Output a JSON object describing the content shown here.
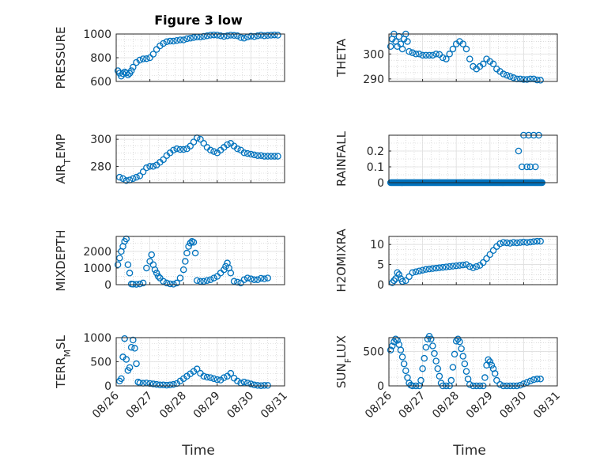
{
  "figure": {
    "title": "Figure 3 low",
    "xlabel": "Time",
    "marker_color": "#0072BD"
  },
  "chart_data": [
    {
      "type": "scatter",
      "ylabel": "PRESSURE",
      "ylim": [
        600,
        1000
      ],
      "yticks": [
        600,
        800,
        1000
      ],
      "minor_dy": 50,
      "xlim": [
        0,
        5
      ],
      "xticks": [
        "08/26",
        "08/27",
        "08/28",
        "08/29",
        "08/30",
        "08/31"
      ],
      "grid": true,
      "series": [
        {
          "x": [
            0.05,
            0.1,
            0.15,
            0.2,
            0.25,
            0.3,
            0.35,
            0.4,
            0.45,
            0.5,
            0.6,
            0.7,
            0.8,
            0.9,
            1.0,
            1.1,
            1.2,
            1.3,
            1.4,
            1.5,
            1.6,
            1.7,
            1.8,
            1.9,
            2.0,
            2.1,
            2.2,
            2.3,
            2.4,
            2.5,
            2.6,
            2.7,
            2.8,
            2.9,
            3.0,
            3.1,
            3.2,
            3.3,
            3.4,
            3.5,
            3.6,
            3.7,
            3.8,
            3.9,
            4.0,
            4.1,
            4.2,
            4.3,
            4.4,
            4.5,
            4.6,
            4.7,
            4.8
          ],
          "y": [
            690,
            670,
            645,
            665,
            680,
            672,
            655,
            668,
            690,
            720,
            760,
            780,
            790,
            792,
            800,
            830,
            870,
            900,
            920,
            935,
            940,
            940,
            945,
            950,
            950,
            960,
            965,
            970,
            975,
            975,
            980,
            985,
            990,
            992,
            990,
            985,
            980,
            985,
            990,
            988,
            985,
            970,
            965,
            975,
            982,
            978,
            985,
            990,
            985,
            988,
            990,
            992,
            990
          ]
        }
      ]
    },
    {
      "type": "scatter",
      "ylabel": "THETA",
      "ylim": [
        289,
        308
      ],
      "yticks": [
        290,
        300
      ],
      "minor_dy": 2.5,
      "xlim": [
        0,
        5
      ],
      "xticks": [
        "08/26",
        "08/27",
        "08/28",
        "08/29",
        "08/30",
        "08/31"
      ],
      "grid": true,
      "series": [
        {
          "x": [
            0.05,
            0.1,
            0.15,
            0.2,
            0.25,
            0.3,
            0.35,
            0.4,
            0.45,
            0.5,
            0.55,
            0.6,
            0.7,
            0.8,
            0.9,
            1.0,
            1.1,
            1.2,
            1.3,
            1.4,
            1.5,
            1.6,
            1.7,
            1.8,
            1.9,
            2.0,
            2.1,
            2.2,
            2.3,
            2.4,
            2.5,
            2.6,
            2.7,
            2.8,
            2.9,
            3.0,
            3.1,
            3.2,
            3.3,
            3.4,
            3.5,
            3.6,
            3.7,
            3.8,
            3.9,
            4.0,
            4.1,
            4.2,
            4.3,
            4.4,
            4.5
          ],
          "y": [
            303,
            306,
            308,
            305,
            303,
            307,
            304,
            302,
            306,
            308,
            305,
            301,
            300.5,
            300,
            300,
            299.5,
            299.5,
            299.5,
            299.5,
            300,
            299.8,
            298.5,
            298,
            300,
            302,
            304,
            305,
            304,
            302,
            298,
            295,
            294,
            295,
            296,
            298,
            297,
            296,
            294,
            293,
            292,
            291.5,
            291,
            290.5,
            290,
            290,
            289.8,
            289.8,
            290,
            290,
            289.6,
            289.5
          ]
        }
      ]
    },
    {
      "type": "scatter",
      "ylabel": "AIR_TEMP",
      "ylim": [
        268,
        303
      ],
      "yticks": [
        280,
        300
      ],
      "minor_dy": 5,
      "xlim": [
        0,
        5
      ],
      "xticks": [
        "08/26",
        "08/27",
        "08/28",
        "08/29",
        "08/30",
        "08/31"
      ],
      "grid": true,
      "series": [
        {
          "x": [
            0.1,
            0.2,
            0.3,
            0.4,
            0.5,
            0.6,
            0.7,
            0.8,
            0.9,
            1.0,
            1.1,
            1.2,
            1.3,
            1.4,
            1.5,
            1.6,
            1.7,
            1.8,
            1.9,
            2.0,
            2.1,
            2.2,
            2.3,
            2.4,
            2.5,
            2.6,
            2.7,
            2.8,
            2.9,
            3.0,
            3.1,
            3.2,
            3.3,
            3.4,
            3.5,
            3.6,
            3.7,
            3.8,
            3.9,
            4.0,
            4.1,
            4.2,
            4.3,
            4.4,
            4.5,
            4.6,
            4.7,
            4.8
          ],
          "y": [
            272,
            271,
            269.5,
            270,
            271,
            272,
            273,
            276,
            279,
            280,
            280,
            281,
            283,
            285,
            288,
            290,
            292,
            293,
            292.5,
            292.5,
            293,
            295,
            298,
            301,
            300,
            297,
            294,
            292,
            291,
            290,
            292,
            294,
            296,
            297,
            295,
            293,
            292,
            290,
            289.5,
            289,
            288.5,
            288,
            288,
            287.5,
            287.5,
            287.5,
            287.5,
            287.5
          ]
        }
      ]
    },
    {
      "type": "scatter",
      "ylabel": "RAINFALL",
      "ylim": [
        0,
        0.3
      ],
      "yticks": [
        0,
        0.1,
        0.2
      ],
      "minor_dy": 0.05,
      "xlim": [
        0,
        5
      ],
      "xticks": [
        "08/26",
        "08/27",
        "08/28",
        "08/29",
        "08/30",
        "08/31"
      ],
      "grid": true,
      "series": [
        {
          "x": [
            3.85,
            3.95,
            4.0,
            4.1,
            4.15,
            4.2,
            4.3,
            4.35,
            4.45
          ],
          "y": [
            0.2,
            0.1,
            0.3,
            0.1,
            0.3,
            0.1,
            0.3,
            0.1,
            0.3
          ],
          "zero_x_range": [
            0.05,
            4.55
          ]
        }
      ]
    },
    {
      "type": "scatter",
      "ylabel": "MIXDEPTH",
      "ylim": [
        0,
        2900
      ],
      "yticks": [
        0,
        1000,
        2000
      ],
      "minor_dy": 500,
      "xlim": [
        0,
        5
      ],
      "xticks": [
        "08/26",
        "08/27",
        "08/28",
        "08/29",
        "08/30",
        "08/31"
      ],
      "grid": true,
      "series": [
        {
          "x": [
            0.05,
            0.1,
            0.15,
            0.2,
            0.25,
            0.3,
            0.35,
            0.4,
            0.45,
            0.5,
            0.6,
            0.7,
            0.8,
            0.9,
            1.0,
            1.05,
            1.1,
            1.15,
            1.2,
            1.25,
            1.3,
            1.4,
            1.5,
            1.6,
            1.7,
            1.8,
            1.9,
            2.0,
            2.05,
            2.1,
            2.15,
            2.2,
            2.25,
            2.3,
            2.35,
            2.4,
            2.5,
            2.6,
            2.7,
            2.8,
            2.9,
            3.0,
            3.1,
            3.2,
            3.25,
            3.3,
            3.35,
            3.4,
            3.5,
            3.6,
            3.7,
            3.8,
            3.9,
            4.0,
            4.1,
            4.2,
            4.3,
            4.4,
            4.5
          ],
          "y": [
            1200,
            1600,
            2000,
            2300,
            2600,
            2750,
            1200,
            700,
            40,
            30,
            20,
            40,
            100,
            1000,
            1400,
            1800,
            1200,
            900,
            700,
            500,
            400,
            200,
            100,
            50,
            30,
            100,
            400,
            900,
            1400,
            1900,
            2300,
            2500,
            2600,
            2550,
            1900,
            250,
            200,
            200,
            250,
            300,
            400,
            500,
            700,
            900,
            1100,
            1300,
            1000,
            700,
            200,
            150,
            100,
            300,
            400,
            350,
            300,
            300,
            380,
            350,
            400
          ]
        }
      ]
    },
    {
      "type": "scatter",
      "ylabel": "H2OMIXRA",
      "ylim": [
        0,
        12
      ],
      "yticks": [
        0,
        5,
        10
      ],
      "minor_dy": 1.25,
      "xlim": [
        0,
        5
      ],
      "xticks": [
        "08/26",
        "08/27",
        "08/28",
        "08/29",
        "08/30",
        "08/31"
      ],
      "grid": true,
      "series": [
        {
          "x": [
            0.1,
            0.15,
            0.2,
            0.25,
            0.3,
            0.35,
            0.4,
            0.5,
            0.6,
            0.7,
            0.8,
            0.9,
            1.0,
            1.1,
            1.2,
            1.3,
            1.4,
            1.5,
            1.6,
            1.7,
            1.8,
            1.9,
            2.0,
            2.1,
            2.2,
            2.3,
            2.4,
            2.5,
            2.6,
            2.7,
            2.8,
            2.9,
            3.0,
            3.1,
            3.2,
            3.3,
            3.4,
            3.5,
            3.6,
            3.7,
            3.8,
            3.9,
            4.0,
            4.1,
            4.2,
            4.3,
            4.4,
            4.5
          ],
          "y": [
            0.5,
            1.0,
            1.5,
            3.0,
            2.5,
            1.5,
            0.8,
            1.0,
            2.0,
            3.0,
            3.2,
            3.4,
            3.6,
            3.8,
            3.9,
            4.0,
            4.1,
            4.2,
            4.3,
            4.4,
            4.5,
            4.6,
            4.7,
            4.8,
            4.9,
            5.0,
            4.5,
            4.2,
            4.5,
            4.8,
            5.5,
            6.5,
            7.5,
            8.5,
            9.5,
            10.2,
            10.5,
            10.4,
            10.3,
            10.5,
            10.4,
            10.5,
            10.6,
            10.5,
            10.6,
            10.7,
            10.8,
            10.8
          ]
        }
      ]
    },
    {
      "type": "scatter",
      "ylabel": "TERR_MSL",
      "ylim": [
        0,
        1000
      ],
      "yticks": [
        0,
        500,
        1000
      ],
      "minor_dy": 125,
      "xlim": [
        0,
        5
      ],
      "xticks": [
        "08/26",
        "08/27",
        "08/28",
        "08/29",
        "08/30",
        "08/31"
      ],
      "grid": true,
      "series": [
        {
          "x": [
            0.1,
            0.15,
            0.2,
            0.25,
            0.3,
            0.35,
            0.4,
            0.45,
            0.5,
            0.55,
            0.6,
            0.65,
            0.7,
            0.8,
            0.9,
            1.0,
            1.1,
            1.2,
            1.3,
            1.4,
            1.5,
            1.6,
            1.7,
            1.8,
            1.9,
            2.0,
            2.1,
            2.2,
            2.3,
            2.4,
            2.5,
            2.6,
            2.7,
            2.8,
            2.9,
            3.0,
            3.1,
            3.2,
            3.3,
            3.4,
            3.5,
            3.6,
            3.7,
            3.8,
            3.9,
            4.0,
            4.1,
            4.2,
            4.3,
            4.4,
            4.5
          ],
          "y": [
            100,
            150,
            600,
            980,
            550,
            320,
            380,
            800,
            950,
            780,
            460,
            80,
            60,
            55,
            60,
            50,
            40,
            30,
            20,
            20,
            15,
            20,
            30,
            50,
            100,
            150,
            200,
            250,
            300,
            350,
            260,
            200,
            180,
            170,
            150,
            130,
            120,
            170,
            200,
            260,
            160,
            100,
            60,
            80,
            60,
            40,
            20,
            10,
            5,
            10,
            10
          ]
        }
      ]
    },
    {
      "type": "scatter",
      "ylabel": "SUN_FLUX",
      "ylim": [
        0,
        700
      ],
      "yticks": [
        0,
        500
      ],
      "minor_dy": 125,
      "xlim": [
        0,
        5
      ],
      "xticks": [
        "08/26",
        "08/27",
        "08/28",
        "08/29",
        "08/30",
        "08/31"
      ],
      "grid": true,
      "series": [
        {
          "x": [
            0.05,
            0.1,
            0.15,
            0.2,
            0.25,
            0.3,
            0.35,
            0.4,
            0.45,
            0.5,
            0.55,
            0.6,
            0.65,
            0.7,
            0.8,
            0.9,
            0.95,
            1.0,
            1.05,
            1.1,
            1.15,
            1.2,
            1.25,
            1.3,
            1.35,
            1.4,
            1.45,
            1.5,
            1.55,
            1.6,
            1.7,
            1.8,
            1.85,
            1.9,
            1.95,
            2.0,
            2.05,
            2.1,
            2.15,
            2.2,
            2.25,
            2.3,
            2.35,
            2.4,
            2.5,
            2.6,
            2.7,
            2.8,
            2.85,
            2.9,
            2.95,
            3.0,
            3.05,
            3.1,
            3.15,
            3.2,
            3.3,
            3.4,
            3.5,
            3.6,
            3.7,
            3.8,
            3.9,
            4.0,
            4.1,
            4.2,
            4.3,
            4.4,
            4.5
          ],
          "y": [
            520,
            580,
            640,
            680,
            660,
            600,
            520,
            420,
            320,
            220,
            120,
            40,
            10,
            0,
            0,
            0,
            80,
            250,
            400,
            560,
            680,
            720,
            680,
            580,
            470,
            360,
            250,
            140,
            40,
            0,
            0,
            0,
            80,
            270,
            460,
            650,
            680,
            640,
            540,
            430,
            320,
            210,
            100,
            20,
            0,
            0,
            0,
            0,
            120,
            300,
            380,
            350,
            300,
            250,
            180,
            80,
            20,
            0,
            0,
            0,
            0,
            0,
            10,
            30,
            50,
            70,
            90,
            100,
            100
          ]
        }
      ]
    }
  ]
}
